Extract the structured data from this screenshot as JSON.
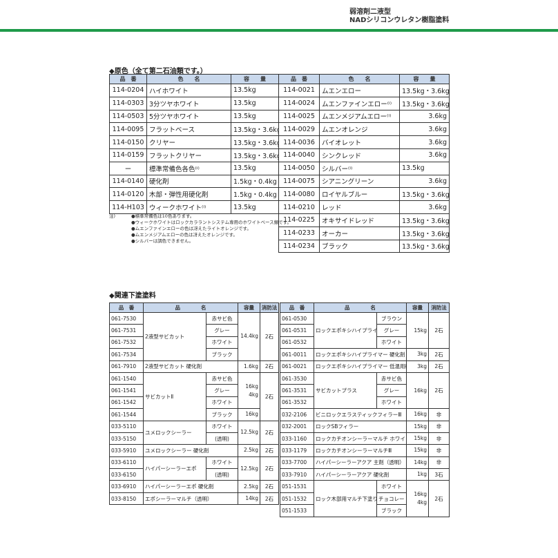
{
  "header": {
    "line1": "弱溶剤二液型",
    "line2": "NADシリコンウレタン樹脂塗料"
  },
  "section1": {
    "title": "◆原色（全て第二石油類です。）",
    "headers": [
      "品　番",
      "色　　名",
      "容　　量"
    ],
    "left_rows": [
      [
        "114-0204",
        "ハイホワイト",
        "13.5kg"
      ],
      [
        "114-0303",
        "3分ツヤホワイト",
        "13.5kg"
      ],
      [
        "114-0503",
        "5分ツヤホワイト",
        "13.5kg"
      ],
      [
        "114-0095",
        "フラットベース",
        "13.5kg・3.6kg"
      ],
      [
        "114-0150",
        "クリヤー",
        "13.5kg・3.6kg"
      ],
      [
        "114-0159",
        "フラットクリヤー",
        "13.5kg・3.6kg"
      ],
      [
        "ー",
        "標準常備色各色⁽ⁱ⁾",
        "13.5kg"
      ],
      [
        "114-0140",
        "硬化剤",
        "1.5kg・0.4kg"
      ],
      [
        "114-0120",
        "木部・弾性用硬化剤",
        "1.5kg・0.4kg"
      ],
      [
        "114-H103",
        "ウィークホワイト⁽ⁱ⁾",
        "13.5kg"
      ]
    ],
    "right_rows": [
      [
        "114-0021",
        "ムエンエロー",
        "13.5kg・3.6kg"
      ],
      [
        "114-0024",
        "ムエンファインエロー⁽ⁱ⁾",
        "13.5kg・3.6kg"
      ],
      [
        "114-0025",
        "ムエンメジアムエロー⁽ⁱ⁾",
        "3.6kg"
      ],
      [
        "114-0029",
        "ムエンオレンジ",
        "3.6kg"
      ],
      [
        "114-0036",
        "バイオレット",
        "3.6kg"
      ],
      [
        "114-0040",
        "シンクレッド",
        "3.6kg"
      ],
      [
        "114-0050",
        "シルバー⁽ⁱ⁾",
        "13.5kg"
      ],
      [
        "114-0075",
        "シアニングリーン",
        "3.6kg"
      ],
      [
        "114-0080",
        "ロイヤルブルー",
        "13.5kg・3.6kg"
      ],
      [
        "114-0210",
        "レッド",
        "3.6kg"
      ],
      [
        "114-0225",
        "オキサイドレッド",
        "13.5kg・3.6kg"
      ],
      [
        "114-0233",
        "オーカー",
        "13.5kg・3.6kg"
      ],
      [
        "114-0234",
        "ブラック",
        "13.5kg・3.6kg"
      ]
    ],
    "notes_label": "注)",
    "notes": [
      "●標準常備色は10色あります。",
      "●ウィークホワイトはロックカララントシステム専用のホワイトベース類です。",
      "●ムエンファインエローの色は冴えたライトオレンジです。",
      "●ムエンメジアムエローの色は冴えたオレンジです。",
      "●シルバーは調色できません。"
    ]
  },
  "section2": {
    "title": "◆関連下塗塗料",
    "headers": [
      "品　番",
      "品　　　　名",
      "容量",
      "消防法"
    ],
    "left_groups": [
      {
        "name": "2液型サビカット",
        "rows": [
          [
            "061-7530",
            "赤サビ色"
          ],
          [
            "061-7531",
            "グレー"
          ],
          [
            "061-7532",
            "ホワイト"
          ],
          [
            "061-7534",
            "ブラック"
          ]
        ],
        "cap": [
          {
            "value": "14.4kg",
            "rows": 4
          }
        ],
        "law": [
          {
            "value": "2石",
            "rows": 4
          }
        ]
      },
      {
        "name": "2液型サビカット 硬化剤",
        "rows": [
          [
            "061-7910"
          ]
        ],
        "cap": [
          {
            "value": "1.6kg",
            "rows": 1
          }
        ],
        "law": [
          {
            "value": "2石",
            "rows": 1
          }
        ]
      },
      {
        "name": "サビカットⅡ",
        "rows": [
          [
            "061-1540",
            "赤サビ色"
          ],
          [
            "061-1541",
            "グレー"
          ],
          [
            "061-1542",
            "ホワイト"
          ],
          [
            "061-1544",
            "ブラック"
          ]
        ],
        "cap": [
          {
            "value": "16kg\n4kg",
            "rows": 3
          },
          {
            "value": "16kg",
            "rows": 1
          }
        ],
        "law": [
          {
            "value": "2石",
            "rows": 4
          }
        ]
      },
      {
        "name": "ユメロックシーラー",
        "rows": [
          [
            "033-5110",
            "ホワイト"
          ],
          [
            "033-5150",
            "(透明)"
          ]
        ],
        "cap": [
          {
            "value": "12.5kg",
            "rows": 2
          }
        ],
        "law": [
          {
            "value": "2石",
            "rows": 2
          }
        ]
      },
      {
        "name": "ユメロックシーラー 硬化剤",
        "rows": [
          [
            "033-5910"
          ]
        ],
        "cap": [
          {
            "value": "2.5kg",
            "rows": 1
          }
        ],
        "law": [
          {
            "value": "2石",
            "rows": 1
          }
        ]
      },
      {
        "name": "ハイパーシーラーエポ",
        "rows": [
          [
            "033-6110",
            "ホワイト"
          ],
          [
            "033-6150",
            "(透明)"
          ]
        ],
        "cap": [
          {
            "value": "12.5kg",
            "rows": 2
          }
        ],
        "law": [
          {
            "value": "2石",
            "rows": 2
          }
        ]
      },
      {
        "name": "ハイパーシーラーエポ 硬化剤",
        "rows": [
          [
            "033-6910"
          ]
        ],
        "cap": [
          {
            "value": "2.5kg",
            "rows": 1
          }
        ],
        "law": [
          {
            "value": "2石",
            "rows": 1
          }
        ]
      },
      {
        "name": "エポシーラーマルチ（透明）",
        "rows": [
          [
            "033-8150"
          ]
        ],
        "cap": [
          {
            "value": "14kg",
            "rows": 1
          }
        ],
        "law": [
          {
            "value": "2石",
            "rows": 1
          }
        ]
      }
    ],
    "right_groups": [
      {
        "name": "ロックエポキシハイプライマー",
        "rows": [
          [
            "061-0530",
            "ブラウン"
          ],
          [
            "061-0531",
            "グレー"
          ],
          [
            "061-0532",
            "ホワイト"
          ]
        ],
        "cap": [
          {
            "value": "15kg",
            "rows": 3
          }
        ],
        "law": [
          {
            "value": "2石",
            "rows": 3
          }
        ]
      },
      {
        "name": "ロックエポキシハイプライマー 硬化剤",
        "rows": [
          [
            "061-0011"
          ]
        ],
        "cap": [
          {
            "value": "3kg",
            "rows": 1
          }
        ],
        "law": [
          {
            "value": "2石",
            "rows": 1
          }
        ]
      },
      {
        "name": "ロックエポキシハイプライマー 低温用硬化剤",
        "rows": [
          [
            "061-0021"
          ]
        ],
        "cap": [
          {
            "value": "3kg",
            "rows": 1
          }
        ],
        "law": [
          {
            "value": "2石",
            "rows": 1
          }
        ]
      },
      {
        "name": "サビカットプラス",
        "rows": [
          [
            "061-3530",
            "赤サビ色"
          ],
          [
            "061-3531",
            "グレー"
          ],
          [
            "061-3532",
            "ホワイト"
          ]
        ],
        "cap": [
          {
            "value": "16kg",
            "rows": 3
          }
        ],
        "law": [
          {
            "value": "2石",
            "rows": 3
          }
        ]
      },
      {
        "name": "ビニロックエラスティックフィラーⅢ",
        "rows": [
          [
            "032-2106"
          ]
        ],
        "cap": [
          {
            "value": "16kg",
            "rows": 1
          }
        ],
        "law": [
          {
            "value": "非",
            "rows": 1
          }
        ]
      },
      {
        "name": "ロックSBフィラー",
        "rows": [
          [
            "032-2001"
          ]
        ],
        "cap": [
          {
            "value": "15kg",
            "rows": 1
          }
        ],
        "law": [
          {
            "value": "非",
            "rows": 1
          }
        ]
      },
      {
        "name": "ロックカチオンシーラーマルチ ホワイト",
        "rows": [
          [
            "033-1160"
          ]
        ],
        "cap": [
          {
            "value": "15kg",
            "rows": 1
          }
        ],
        "law": [
          {
            "value": "非",
            "rows": 1
          }
        ]
      },
      {
        "name": "ロックカチオンシーラーマルチⅢ",
        "rows": [
          [
            "033-1179"
          ]
        ],
        "cap": [
          {
            "value": "15kg",
            "rows": 1
          }
        ],
        "law": [
          {
            "value": "非",
            "rows": 1
          }
        ]
      },
      {
        "name": "ハイパーシーラーアクア 主剤（透明）",
        "rows": [
          [
            "033-7700"
          ]
        ],
        "cap": [
          {
            "value": "14kg",
            "rows": 1
          }
        ],
        "law": [
          {
            "value": "非",
            "rows": 1
          }
        ]
      },
      {
        "name": "ハイパーシーラーアクア 硬化剤",
        "rows": [
          [
            "033-7910"
          ]
        ],
        "cap": [
          {
            "value": "1kg",
            "rows": 1
          }
        ],
        "law": [
          {
            "value": "3石",
            "rows": 1
          }
        ]
      },
      {
        "name": "ロック木部用マルチ下塗り",
        "rows": [
          [
            "051-1531",
            "ホワイト"
          ],
          [
            "051-1532",
            "チョコレート"
          ],
          [
            "051-1533",
            "ブラック"
          ]
        ],
        "cap": [
          {
            "value": "16kg\n4kg",
            "rows": 3
          }
        ],
        "law": [
          {
            "value": "2石",
            "rows": 3
          }
        ]
      }
    ]
  },
  "colors": {
    "accent_green": "#1f9a4a",
    "table_header": "#c9d8ec"
  }
}
